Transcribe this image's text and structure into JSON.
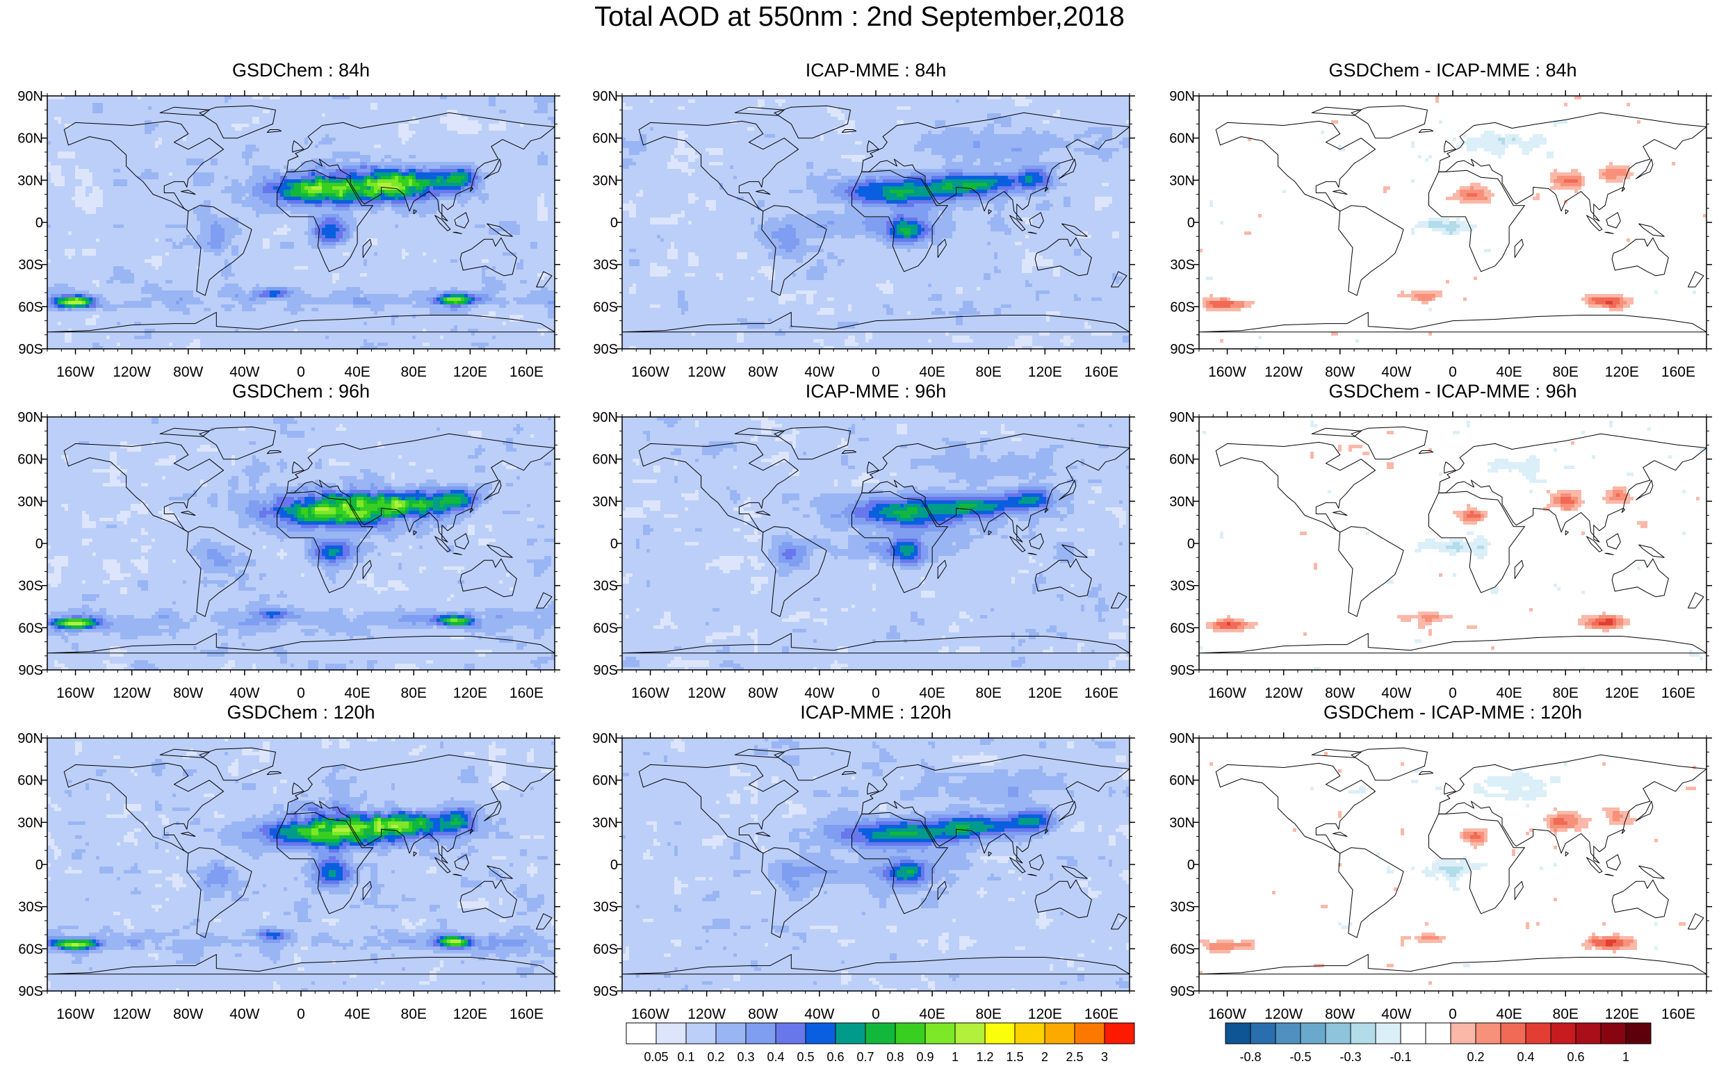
{
  "title": "Total AOD at 550nm : 2nd September,2018",
  "lat_ticks": [
    "90N",
    "60N",
    "30N",
    "0",
    "30S",
    "60S",
    "90S"
  ],
  "lon_ticks": [
    "160W",
    "120W",
    "80W",
    "40W",
    "0",
    "40E",
    "80E",
    "120E",
    "160E"
  ],
  "panels": [
    {
      "title": "GSDChem : 84h",
      "kind": "aod"
    },
    {
      "title": "ICAP-MME : 84h",
      "kind": "aod"
    },
    {
      "title": "GSDChem - ICAP-MME : 84h",
      "kind": "diff"
    },
    {
      "title": "GSDChem : 96h",
      "kind": "aod"
    },
    {
      "title": "ICAP-MME : 96h",
      "kind": "aod"
    },
    {
      "title": "GSDChem - ICAP-MME : 96h",
      "kind": "diff"
    },
    {
      "title": "GSDChem : 120h",
      "kind": "aod"
    },
    {
      "title": "ICAP-MME : 120h",
      "kind": "aod"
    },
    {
      "title": "GSDChem - ICAP-MME : 120h",
      "kind": "diff"
    }
  ],
  "chart_data": {
    "type": "heatmap",
    "title": "Total AOD at 550nm : 2nd September,2018",
    "xlim": [
      -180,
      180
    ],
    "ylim": [
      -90,
      90
    ],
    "aod_colorbar": {
      "labels": [
        "0.05",
        "0.1",
        "0.2",
        "0.3",
        "0.4",
        "0.5",
        "0.6",
        "0.7",
        "0.8",
        "0.9",
        "1",
        "1.2",
        "1.5",
        "2",
        "2.5",
        "3"
      ],
      "colors": [
        "#ffffff",
        "#dce5fb",
        "#bccff8",
        "#9ab5f4",
        "#7f9ef1",
        "#6877ec",
        "#0a5fe0",
        "#009b8b",
        "#12b83b",
        "#38cf20",
        "#7ce828",
        "#b3f03c",
        "#fbfd0a",
        "#fcd300",
        "#fca900",
        "#fc7800",
        "#fc1a00"
      ]
    },
    "diff_colorbar": {
      "labels": [
        "-0.8",
        "-0.5",
        "-0.3",
        "-0.1",
        "0.2",
        "0.4",
        "0.6",
        "1"
      ],
      "colors": [
        "#0d5594",
        "#2a6fad",
        "#4f90c1",
        "#6ba9cc",
        "#8ec4dc",
        "#b3dcea",
        "#dbeff8",
        "#ffffff",
        "#ffffff",
        "#fbb8a8",
        "#f7917a",
        "#f16a55",
        "#e23e33",
        "#c71b1f",
        "#a90f19",
        "#860511",
        "#5d000b"
      ]
    }
  }
}
